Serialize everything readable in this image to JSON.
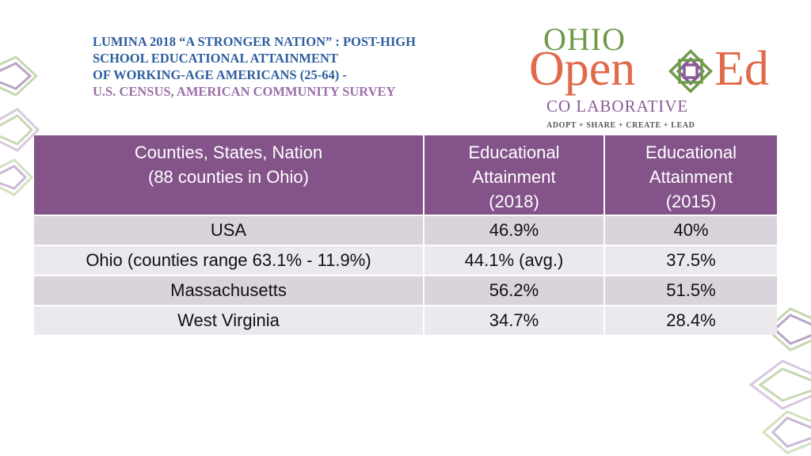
{
  "title": {
    "line1": "LUMINA 2018 “A STRONGER NATION” : POST-HIGH",
    "line2": "SCHOOL EDUCATIONAL ATTAINMENT",
    "line3": "OF WORKING-AGE AMERICANS (25-64) -",
    "line4": "U.S. CENSUS, AMERICAN COMMUNITY SURVEY"
  },
  "logo": {
    "ohio": "OHIO",
    "open": "Open",
    "ed": "Ed",
    "collaborative": "CO LABORATIVE",
    "tagline": "ADOPT + SHARE + CREATE + LEAD"
  },
  "table": {
    "headers": [
      {
        "line1": "Counties, States, Nation",
        "line2": "(88 counties in Ohio)",
        "line3": ""
      },
      {
        "line1": "Educational",
        "line2": "Attainment",
        "line3": "(2018)"
      },
      {
        "line1": "Educational",
        "line2": "Attainment",
        "line3": "(2015)"
      }
    ],
    "rows": [
      {
        "name": "USA",
        "y2018": "46.9%",
        "y2015": "40%"
      },
      {
        "name": "Ohio (counties range 63.1% - 11.9%)",
        "y2018": "44.1% (avg.)",
        "y2015": "37.5%"
      },
      {
        "name": "Massachusetts",
        "y2018": "56.2%",
        "y2015": "51.5%"
      },
      {
        "name": "West Virginia",
        "y2018": "34.7%",
        "y2015": "28.4%"
      }
    ]
  },
  "colors": {
    "header_bg": "#835389",
    "title_blue": "#2e5e9e",
    "title_purple": "#9b6fa8",
    "logo_orange": "#e06a4a",
    "logo_green": "#6f9a4a"
  }
}
